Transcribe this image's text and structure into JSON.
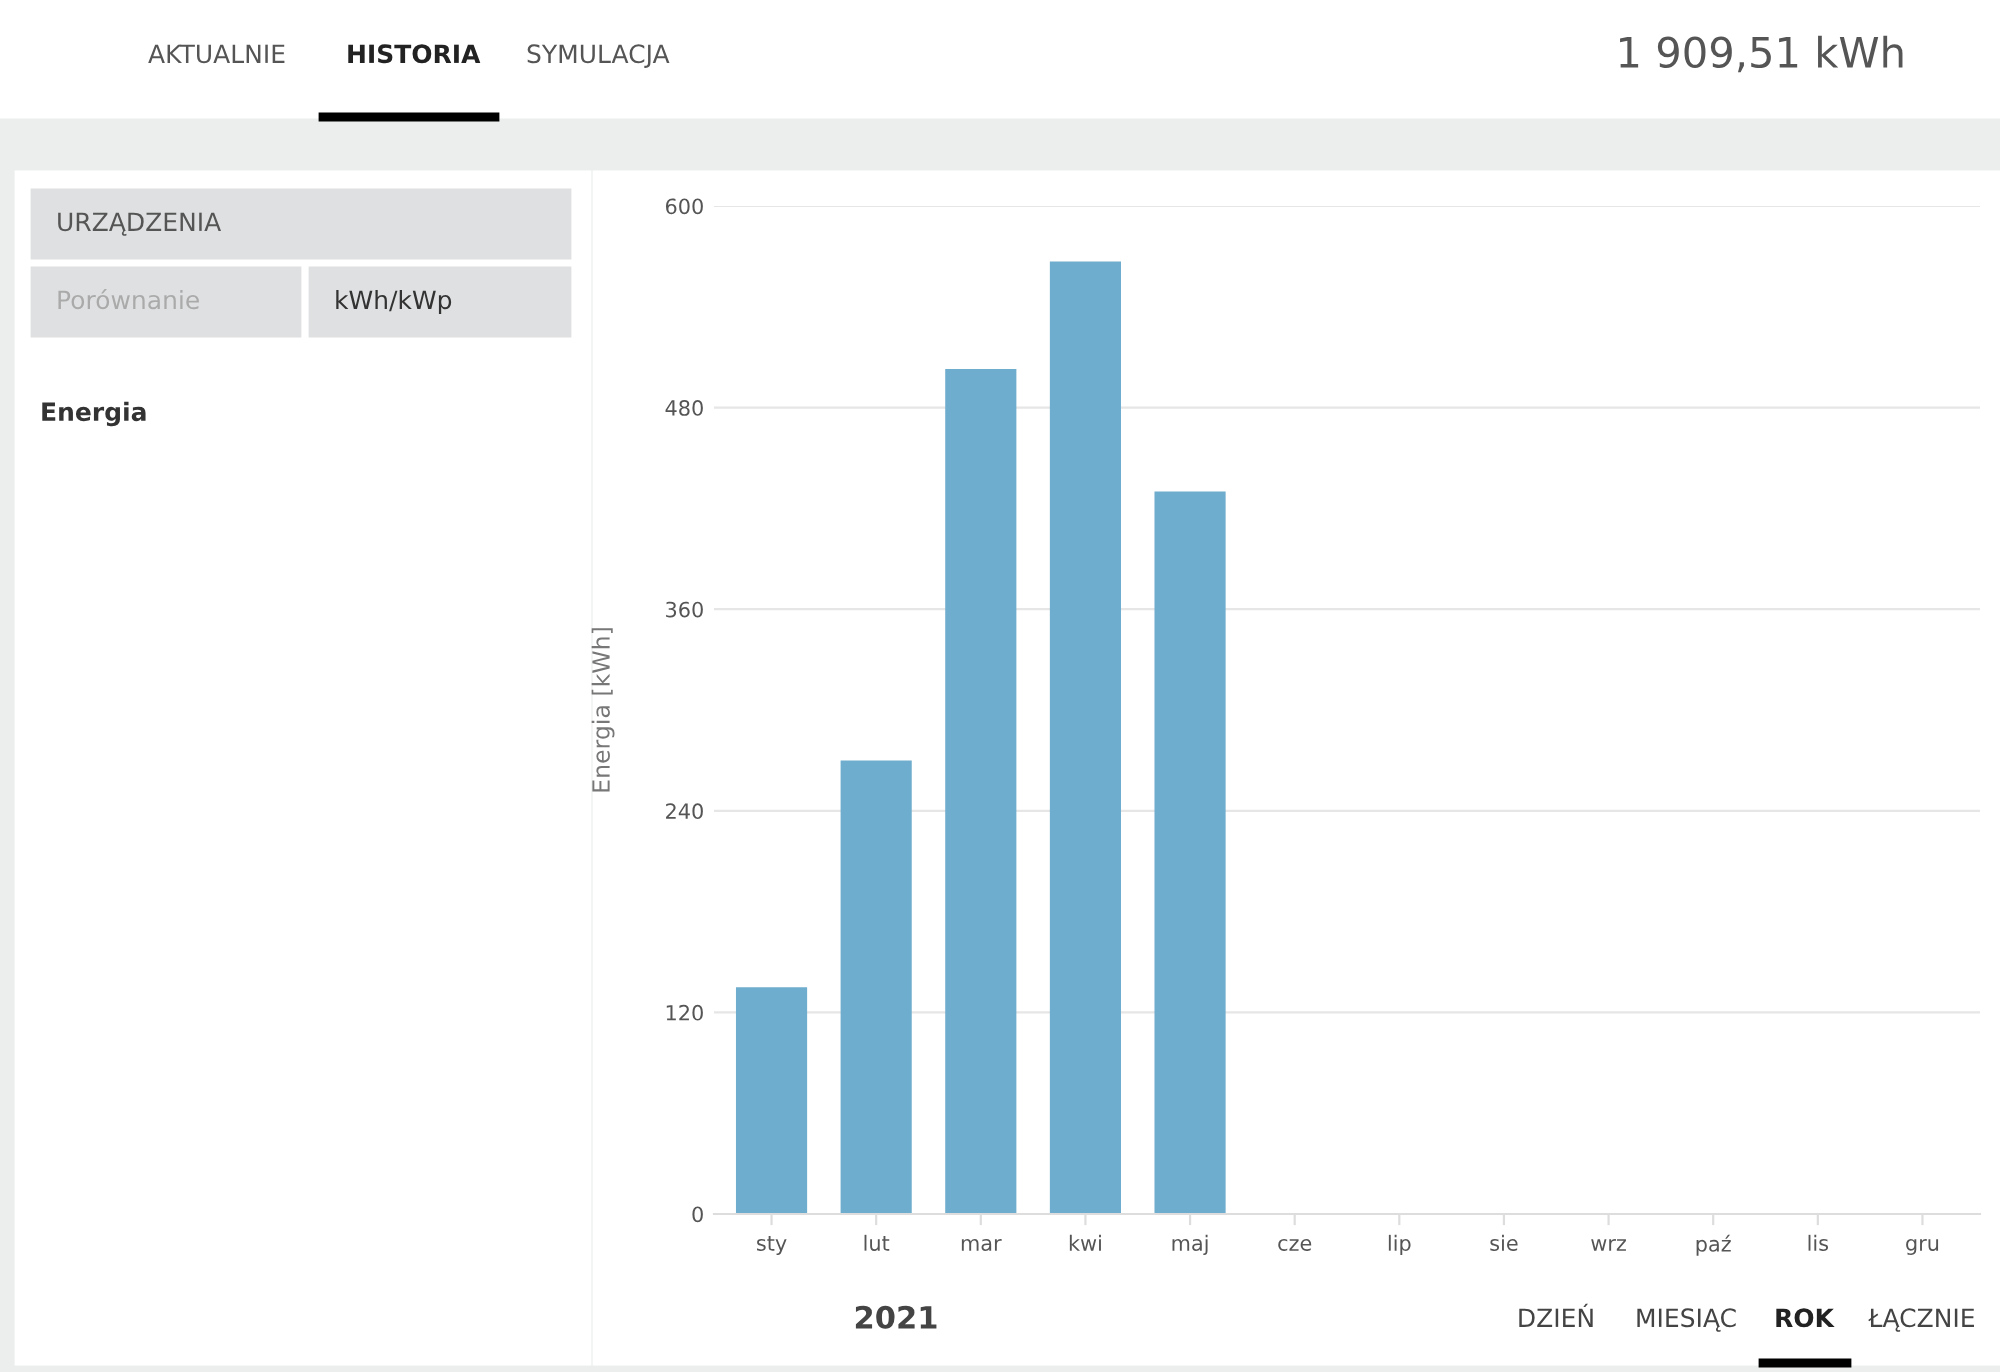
{
  "chart_data": {
    "type": "bar",
    "categories": [
      "sty",
      "lut",
      "mar",
      "kwi",
      "maj",
      "cze",
      "lip",
      "sie",
      "wrz",
      "paź",
      "lis",
      "gru"
    ],
    "series": [
      {
        "color": "#6eadcd",
        "values": [
          135,
          270,
          503,
          567,
          430,
          null,
          null,
          null,
          null,
          null,
          null,
          null
        ]
      }
    ],
    "ylabel": "Energia [kWh]",
    "legend_title": "Energia",
    "ylim": [
      0,
      600
    ],
    "yticks": [
      0,
      120,
      240,
      360,
      480,
      600
    ],
    "grid": "y",
    "annotations": [
      "AKTUALNIE",
      "HISTORIA",
      "SYMULACJA",
      "1 909,51 kWh",
      "URZĄDZENIA",
      "Porównanie",
      "kWh/kWp",
      "2021",
      "DZIEŃ",
      "MIESIĄC",
      "ROK",
      "ŁĄCZNIE"
    ]
  }
}
